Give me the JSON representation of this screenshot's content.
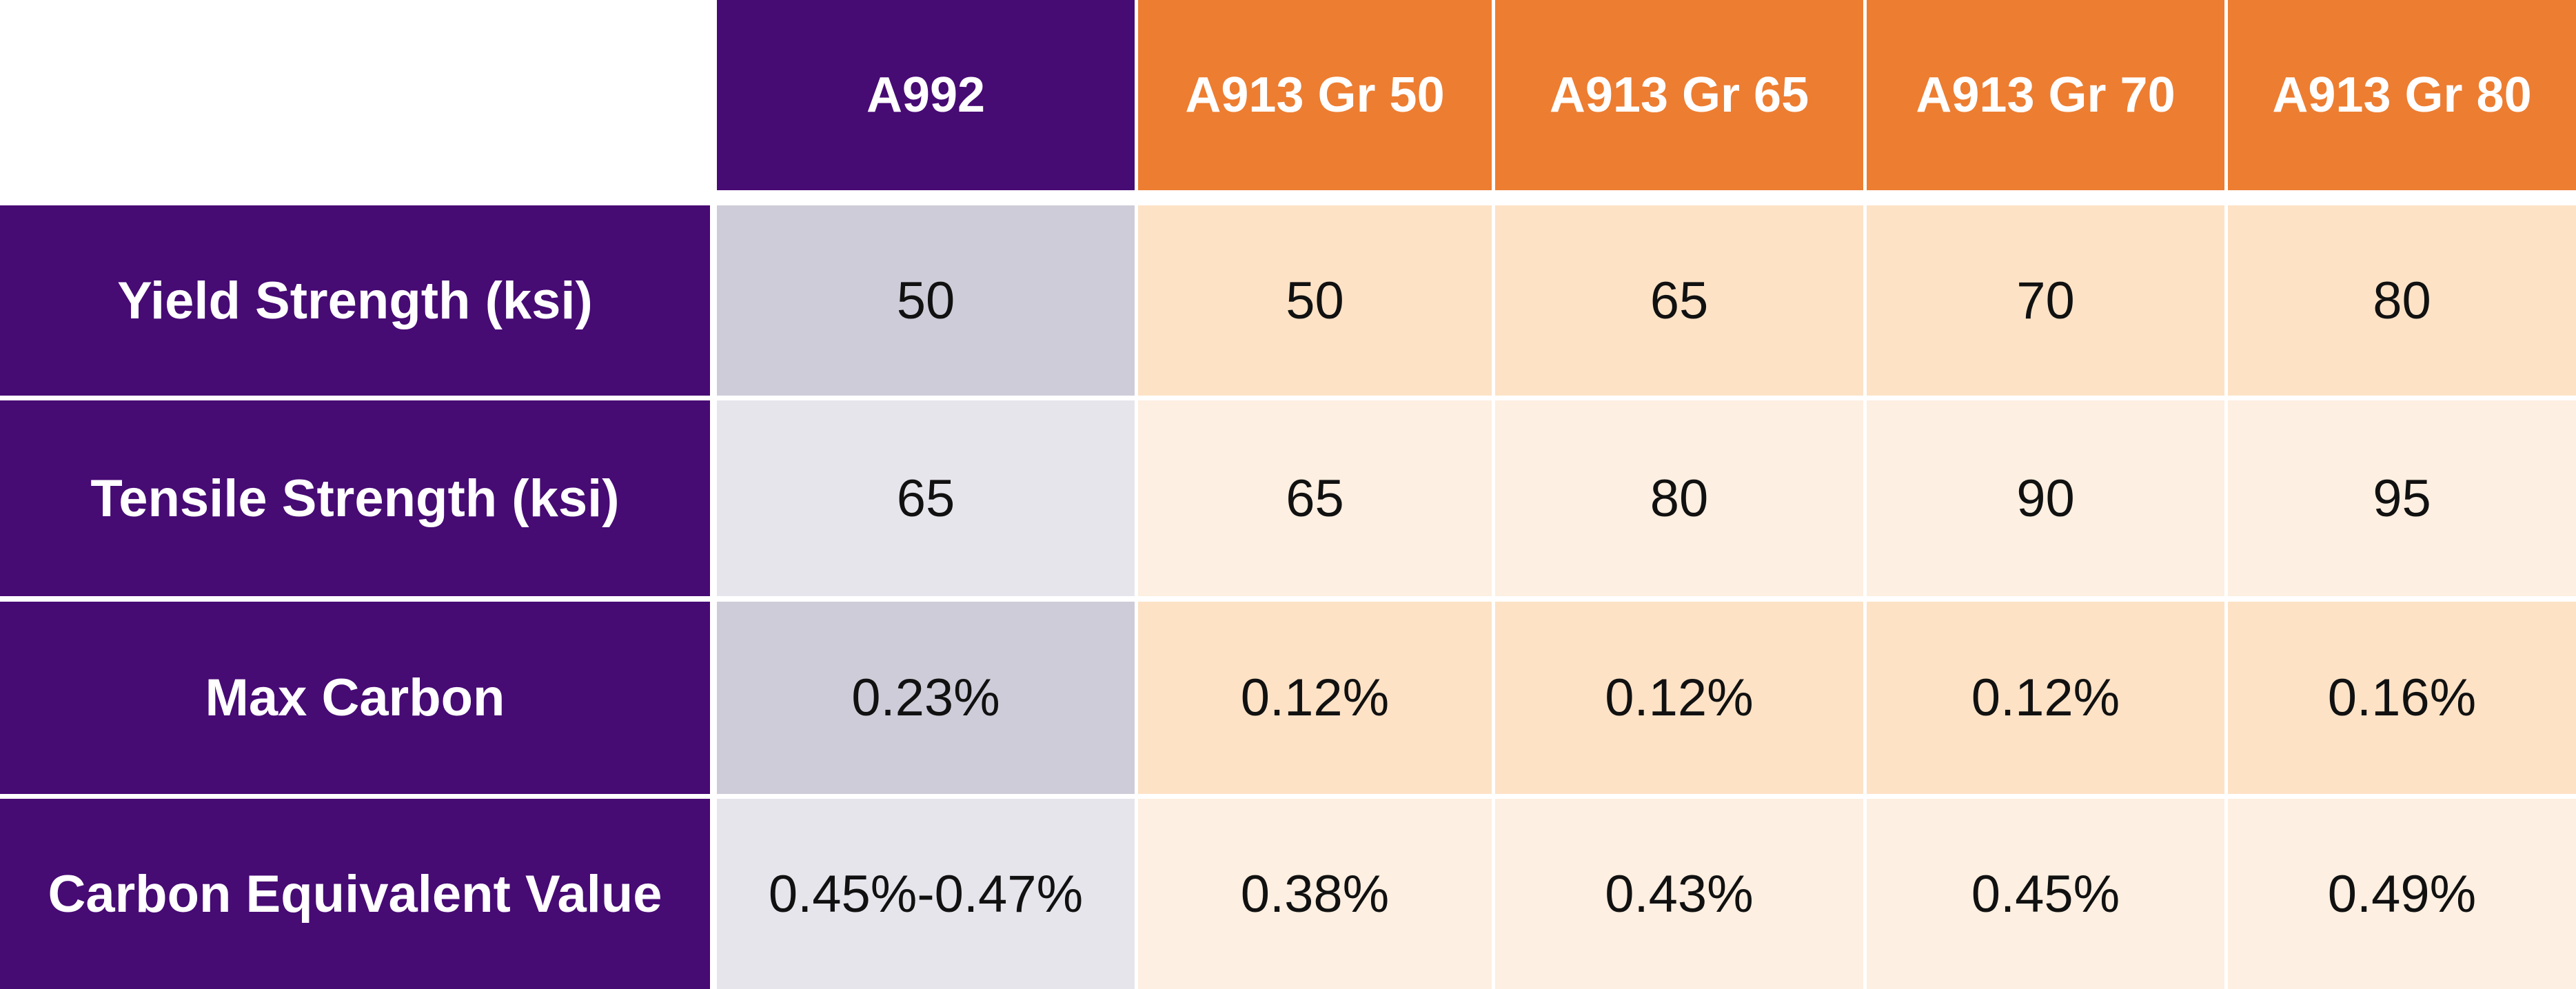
{
  "table": {
    "corner": "",
    "columns": [
      "A992",
      "A913 Gr 50",
      "A913 Gr 65",
      "A913 Gr 70",
      "A913 Gr 80"
    ],
    "rows": [
      {
        "label": "Yield Strength (ksi)",
        "values": [
          "50",
          "50",
          "65",
          "70",
          "80"
        ]
      },
      {
        "label": "Tensile Strength (ksi)",
        "values": [
          "65",
          "65",
          "80",
          "90",
          "95"
        ]
      },
      {
        "label": "Max Carbon",
        "values": [
          "0.23%",
          "0.12%",
          "0.12%",
          "0.12%",
          "0.16%"
        ]
      },
      {
        "label": "Carbon Equivalent Value",
        "values": [
          "0.45%-0.47%",
          "0.38%",
          "0.43%",
          "0.45%",
          "0.49%"
        ]
      }
    ]
  },
  "colors": {
    "a992_header": "#470b74",
    "a913_header": "#ed7d31",
    "row_header": "#470b74",
    "a992_band_dark": "#cfccd9",
    "a992_band_light": "#e7e5ec",
    "a913_band_dark": "#fde2c6",
    "a913_band_light": "#fdefe1"
  }
}
